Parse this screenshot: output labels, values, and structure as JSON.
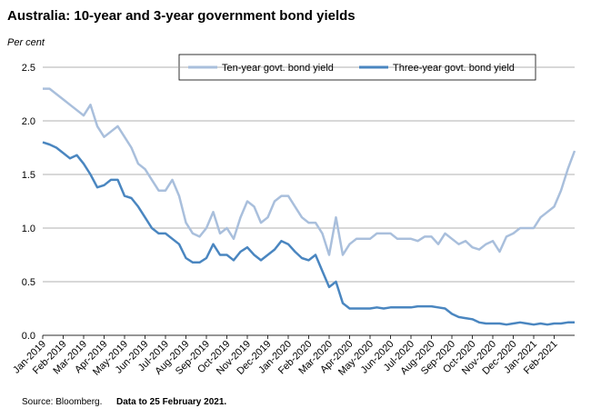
{
  "chart_data": {
    "type": "line",
    "title": "Australia: 10-year and 3-year government bond yields",
    "subtitle": "Per cent",
    "source": "Source: Bloomberg.",
    "note": "Data to 25 February 2021.",
    "categories": [
      "Jan-2019",
      null,
      null,
      "Feb-2019",
      null,
      null,
      "Mar-2019",
      null,
      null,
      "Apr-2019",
      null,
      null,
      "May-2019",
      null,
      null,
      "Jun-2019",
      null,
      null,
      "Jul-2019",
      null,
      null,
      "Aug-2019",
      null,
      null,
      "Sep-2019",
      null,
      null,
      "Oct-2019",
      null,
      null,
      "Nov-2019",
      null,
      null,
      "Dec-2019",
      null,
      null,
      "Jan-2020",
      null,
      null,
      "Feb-2020",
      null,
      null,
      "Mar-2020",
      null,
      null,
      "Apr-2020",
      null,
      null,
      "May-2020",
      null,
      null,
      "Jun-2020",
      null,
      null,
      "Jul-2020",
      null,
      null,
      "Aug-2020",
      null,
      null,
      "Sep-2020",
      null,
      null,
      "Oct-2020",
      null,
      null,
      "Nov-2020",
      null,
      null,
      "Dec-2020",
      null,
      null,
      "Jan-2021",
      null,
      null,
      "Feb-2021",
      null,
      null,
      null
    ],
    "series": [
      {
        "name": "Ten-year govt. bond yield",
        "color": "#a9bfdc",
        "values": [
          2.3,
          2.3,
          2.25,
          2.2,
          2.15,
          2.1,
          2.05,
          2.15,
          1.95,
          1.85,
          1.9,
          1.95,
          1.85,
          1.75,
          1.6,
          1.55,
          1.45,
          1.35,
          1.35,
          1.45,
          1.3,
          1.05,
          0.95,
          0.92,
          1.0,
          1.15,
          0.95,
          1.0,
          0.9,
          1.1,
          1.25,
          1.2,
          1.05,
          1.1,
          1.25,
          1.3,
          1.3,
          1.2,
          1.1,
          1.05,
          1.05,
          0.95,
          0.75,
          1.1,
          0.75,
          0.85,
          0.9,
          0.9,
          0.9,
          0.95,
          0.95,
          0.95,
          0.9,
          0.9,
          0.9,
          0.88,
          0.92,
          0.92,
          0.85,
          0.95,
          0.9,
          0.85,
          0.88,
          0.82,
          0.8,
          0.85,
          0.88,
          0.78,
          0.92,
          0.95,
          1.0,
          1.0,
          1.0,
          1.1,
          1.15,
          1.2,
          1.35,
          1.55,
          1.72
        ]
      },
      {
        "name": "Three-year govt. bond yield",
        "color": "#4a86c0",
        "values": [
          1.8,
          1.78,
          1.75,
          1.7,
          1.65,
          1.68,
          1.6,
          1.5,
          1.38,
          1.4,
          1.45,
          1.45,
          1.3,
          1.28,
          1.2,
          1.1,
          1.0,
          0.95,
          0.95,
          0.9,
          0.85,
          0.72,
          0.68,
          0.68,
          0.72,
          0.85,
          0.75,
          0.75,
          0.7,
          0.78,
          0.82,
          0.75,
          0.7,
          0.75,
          0.8,
          0.88,
          0.85,
          0.78,
          0.72,
          0.7,
          0.75,
          0.6,
          0.45,
          0.5,
          0.3,
          0.25,
          0.25,
          0.25,
          0.25,
          0.26,
          0.25,
          0.26,
          0.26,
          0.26,
          0.26,
          0.27,
          0.27,
          0.27,
          0.26,
          0.25,
          0.2,
          0.17,
          0.16,
          0.15,
          0.12,
          0.11,
          0.11,
          0.11,
          0.1,
          0.11,
          0.12,
          0.11,
          0.1,
          0.11,
          0.1,
          0.11,
          0.11,
          0.12,
          0.12
        ]
      }
    ],
    "ylim": [
      0,
      2.5
    ],
    "yticks": [
      {
        "value": 0,
        "label": "0.0"
      },
      0.5,
      {
        "value": 1,
        "label": "1.0"
      },
      1.5,
      {
        "value": 2,
        "label": "2.0"
      },
      2.5
    ],
    "grid": true
  }
}
